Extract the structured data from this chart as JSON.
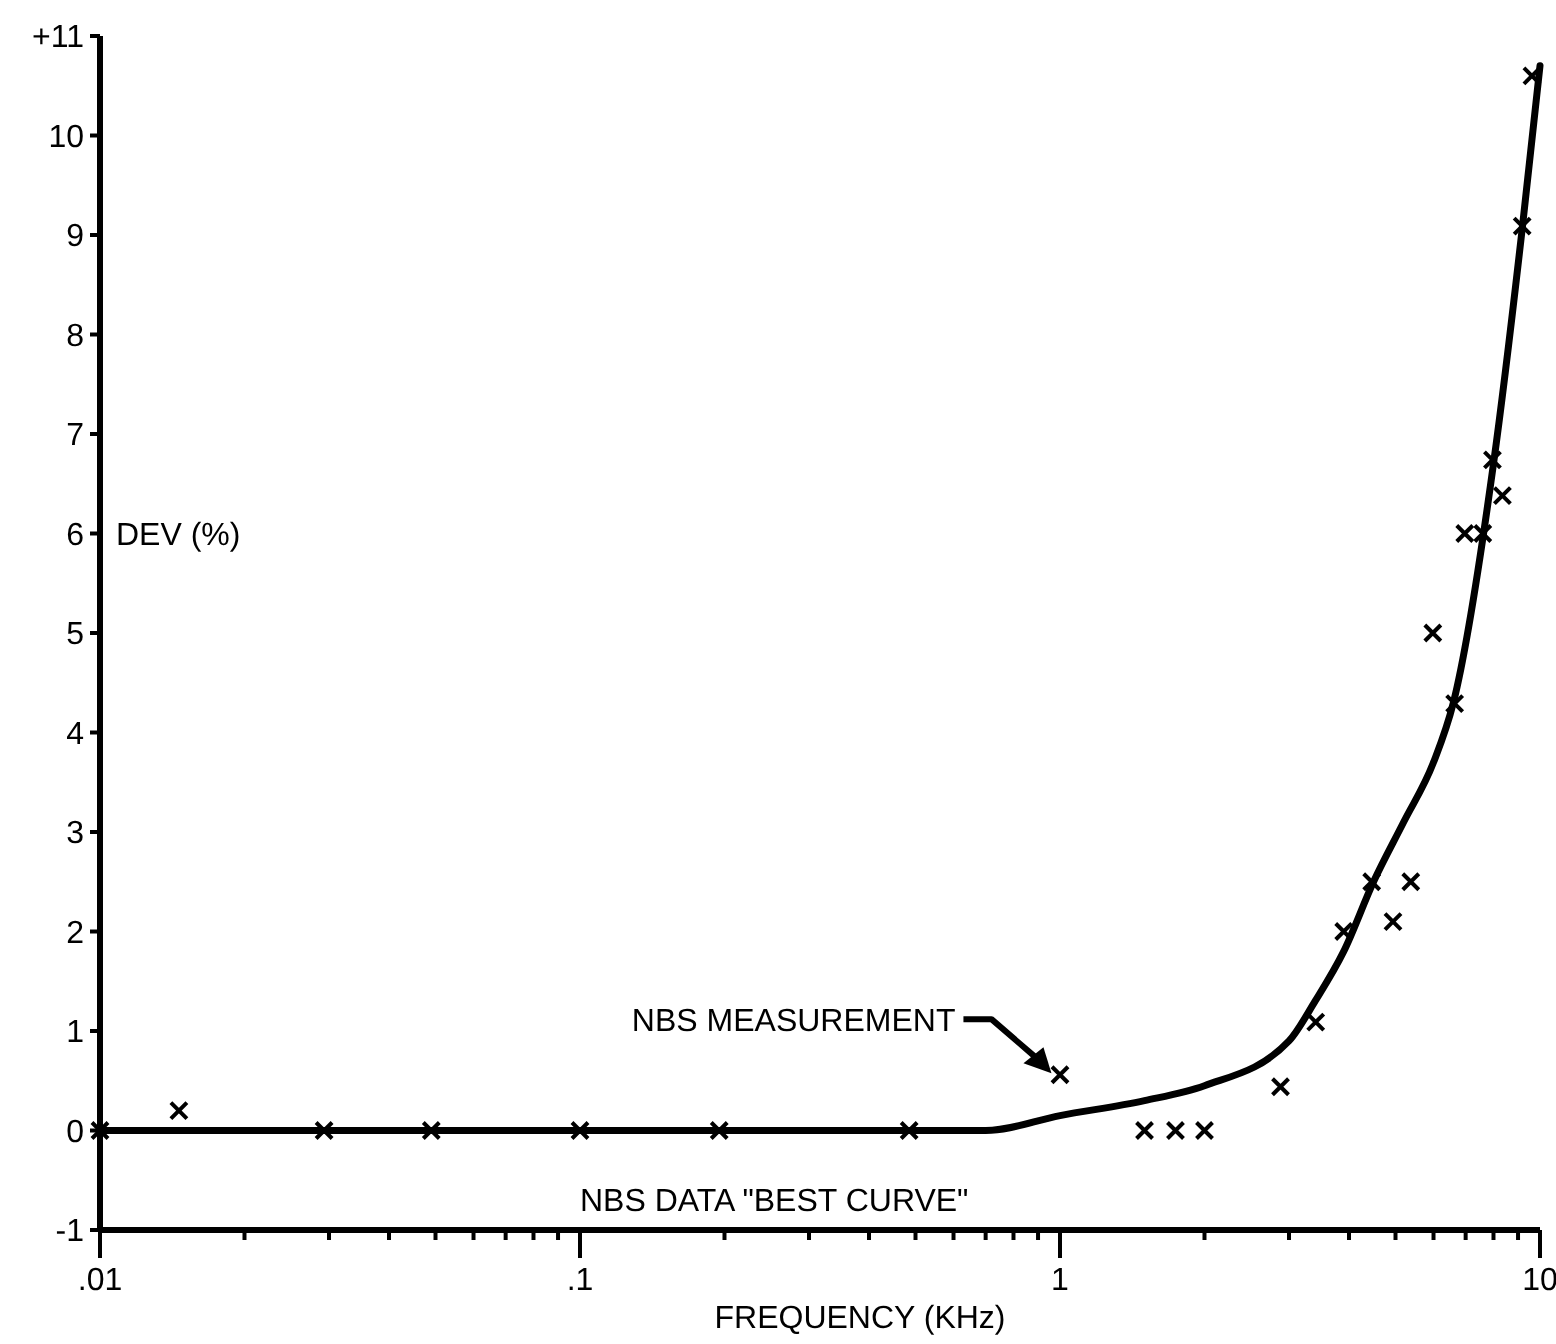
{
  "chart_data": {
    "type": "scatter",
    "xlabel": "FREQUENCY (KHz)",
    "ylabel": "DEV (%)",
    "log": "x",
    "xlim": [
      0.01,
      10
    ],
    "ylim": [
      -1,
      11
    ],
    "xticks": [
      {
        "value": 0.01,
        "label": ".01"
      },
      {
        "value": 0.02,
        "label": null
      },
      {
        "value": 0.03,
        "label": null
      },
      {
        "value": 0.04,
        "label": null
      },
      {
        "value": 0.05,
        "label": null
      },
      {
        "value": 0.06,
        "label": null
      },
      {
        "value": 0.07,
        "label": null
      },
      {
        "value": 0.08,
        "label": null
      },
      {
        "value": 0.09,
        "label": null
      },
      {
        "value": 0.1,
        "label": ".1"
      },
      {
        "value": 0.2,
        "label": null
      },
      {
        "value": 0.3,
        "label": null
      },
      {
        "value": 0.4,
        "label": null
      },
      {
        "value": 0.5,
        "label": null
      },
      {
        "value": 0.6,
        "label": null
      },
      {
        "value": 0.7,
        "label": null
      },
      {
        "value": 0.8,
        "label": null
      },
      {
        "value": 0.9,
        "label": null
      },
      1,
      {
        "value": 2,
        "label": null
      },
      {
        "value": 3,
        "label": null
      },
      {
        "value": 4,
        "label": null
      },
      {
        "value": 5,
        "label": null
      },
      {
        "value": 6,
        "label": null
      },
      {
        "value": 7,
        "label": null
      },
      {
        "value": 8,
        "label": null
      },
      {
        "value": 9,
        "label": null
      },
      10
    ],
    "yticks": [
      -1,
      0,
      1,
      2,
      3,
      4,
      5,
      6,
      7,
      8,
      9,
      10,
      {
        "value": 11,
        "label": "+11"
      }
    ],
    "grid": false,
    "series": [
      {
        "type": "line",
        "name": "NBS DATA \"BEST CURVE\"",
        "color": "#000000",
        "line_style": "solid",
        "x": [
          0.01,
          0.7,
          1,
          1.5,
          2,
          3,
          3.4,
          3.9,
          4.5,
          5.2,
          6,
          6.6,
          8,
          9.2,
          10
        ],
        "values": [
          0,
          0,
          0.15,
          0.3,
          0.45,
          0.9,
          1.3,
          1.8,
          2.5,
          3.1,
          3.7,
          4.3,
          6.7,
          9.1,
          10.7
        ]
      },
      {
        "color": "#000000",
        "marker": "cross",
        "x": [
          0.01,
          0.0146,
          0.0293,
          0.049,
          0.1,
          0.195,
          0.485,
          1.0,
          1.5,
          1.74,
          2.0,
          2.88,
          3.41,
          3.9,
          4.46,
          4.94,
          5.38,
          5.98,
          6.64,
          6.97,
          7.6,
          7.96,
          8.35,
          9.18,
          9.62
        ],
        "values": [
          0,
          0.2,
          0,
          0,
          0,
          0,
          0,
          0.56,
          0,
          0,
          0,
          0.44,
          1.09,
          2.0,
          2.5,
          2.1,
          2.5,
          5.0,
          4.29,
          6.0,
          6.0,
          6.74,
          6.38,
          9.09,
          10.6
        ]
      }
    ],
    "annotations": [
      "NBS MEASUREMENT"
    ]
  }
}
